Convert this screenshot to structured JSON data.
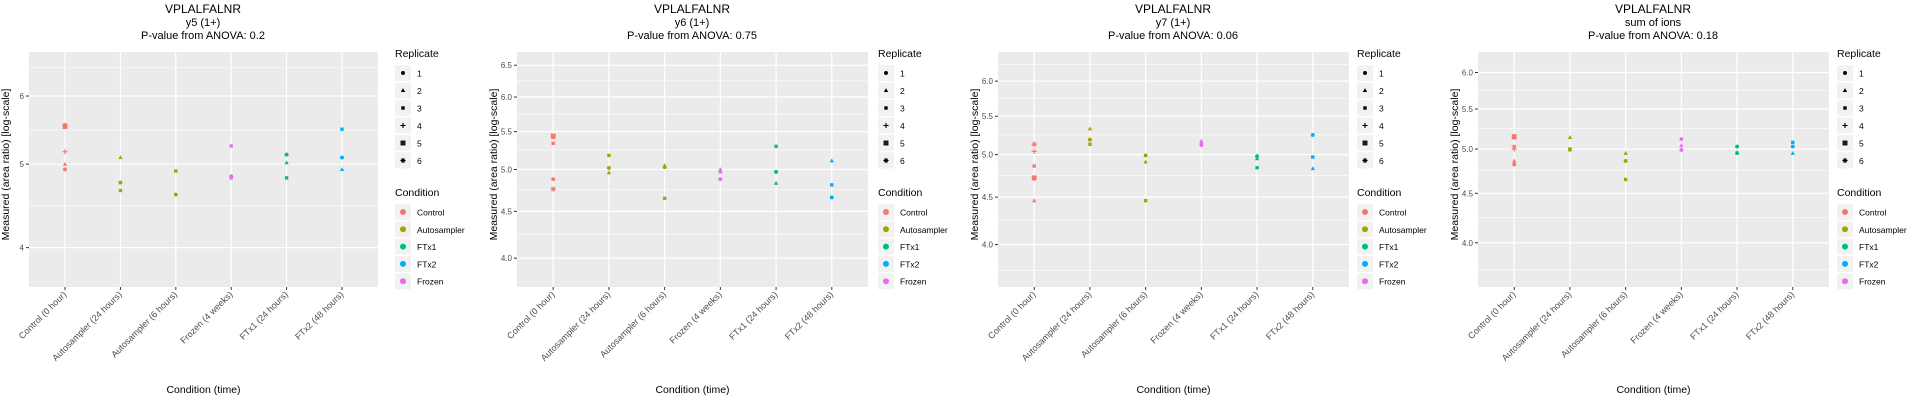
{
  "figure": {
    "legend_replicate_title": "Replicate",
    "legend_condition_title": "Condition"
  },
  "legend": {
    "replicates": [
      {
        "id": "1",
        "shape": "circle"
      },
      {
        "id": "2",
        "shape": "triangle"
      },
      {
        "id": "3",
        "shape": "square"
      },
      {
        "id": "4",
        "shape": "plus"
      },
      {
        "id": "5",
        "shape": "boxed-x"
      },
      {
        "id": "6",
        "shape": "asterisk"
      }
    ],
    "conditions": [
      {
        "label": "Control",
        "color": "#F8766D"
      },
      {
        "label": "Autosampler",
        "color": "#A3A500"
      },
      {
        "label": "FTx1",
        "color": "#00BF7D"
      },
      {
        "label": "FTx2",
        "color": "#00B0F6"
      },
      {
        "label": "Frozen",
        "color": "#E76BF3"
      }
    ]
  },
  "chart_data": [
    {
      "type": "scatter",
      "title": "VPLALFALNR",
      "subtitle": "y5 (1+)",
      "pvalue_text": "P-value from ANOVA: 0.2",
      "xlabel": "Condition (time)",
      "ylabel": "Measured (area ratio) [log-scale]",
      "yscale": "log",
      "ylim": [
        3.6,
        6.75
      ],
      "yticks": [
        4,
        5,
        6
      ],
      "ytick_labels": [
        "4",
        "5",
        "6"
      ],
      "yminor": [
        4.47,
        5.48,
        6.48
      ],
      "grid": true,
      "legend_position": "right",
      "categories": [
        "Control (0 hour)",
        "Autosampler (24 hours)",
        "Autosampler (6 hours)",
        "Frozen (4 weeks)",
        "FTx1 (24 hours)",
        "FTx2 (48 hours)"
      ],
      "points": [
        {
          "x": "Control (0 hour)",
          "condition": "Control",
          "replicate": "3",
          "y": 5.52
        },
        {
          "x": "Control (0 hour)",
          "condition": "Control",
          "replicate": "5",
          "y": 5.53
        },
        {
          "x": "Control (0 hour)",
          "condition": "Control",
          "replicate": "6",
          "y": 5.55
        },
        {
          "x": "Control (0 hour)",
          "condition": "Control",
          "replicate": "4",
          "y": 5.17
        },
        {
          "x": "Control (0 hour)",
          "condition": "Control",
          "replicate": "2",
          "y": 5.0
        },
        {
          "x": "Control (0 hour)",
          "condition": "Control",
          "replicate": "1",
          "y": 4.93
        },
        {
          "x": "Autosampler (24 hours)",
          "condition": "Autosampler",
          "replicate": "2",
          "y": 5.09
        },
        {
          "x": "Autosampler (24 hours)",
          "condition": "Autosampler",
          "replicate": "1",
          "y": 4.76
        },
        {
          "x": "Autosampler (24 hours)",
          "condition": "Autosampler",
          "replicate": "3",
          "y": 4.66
        },
        {
          "x": "Autosampler (6 hours)",
          "condition": "Autosampler",
          "replicate": "3",
          "y": 4.91
        },
        {
          "x": "Autosampler (6 hours)",
          "condition": "Autosampler",
          "replicate": "1",
          "y": 4.61
        },
        {
          "x": "Frozen (4 weeks)",
          "condition": "Frozen",
          "replicate": "3",
          "y": 5.25
        },
        {
          "x": "Frozen (4 weeks)",
          "condition": "Frozen",
          "replicate": "1",
          "y": 4.84
        },
        {
          "x": "Frozen (4 weeks)",
          "condition": "Frozen",
          "replicate": "3",
          "y": 4.82
        },
        {
          "x": "FTx1 (24 hours)",
          "condition": "FTx1",
          "replicate": "1",
          "y": 5.13
        },
        {
          "x": "FTx1 (24 hours)",
          "condition": "FTx1",
          "replicate": "2",
          "y": 5.02
        },
        {
          "x": "FTx1 (24 hours)",
          "condition": "FTx1",
          "replicate": "3",
          "y": 4.82
        },
        {
          "x": "FTx2 (48 hours)",
          "condition": "FTx2",
          "replicate": "3",
          "y": 5.49
        },
        {
          "x": "FTx2 (48 hours)",
          "condition": "FTx2",
          "replicate": "1",
          "y": 5.09
        },
        {
          "x": "FTx2 (48 hours)",
          "condition": "FTx2",
          "replicate": "2",
          "y": 4.93
        }
      ]
    },
    {
      "type": "scatter",
      "title": "VPLALFALNR",
      "subtitle": "y6 (1+)",
      "pvalue_text": "P-value from ANOVA: 0.75",
      "xlabel": "Condition (time)",
      "ylabel": "Measured (area ratio) [log-scale]",
      "yscale": "log",
      "ylim": [
        3.72,
        6.72
      ],
      "yticks": [
        4.0,
        4.5,
        5.0,
        5.5,
        6.0,
        6.5
      ],
      "ytick_labels": [
        "4.0",
        "4.5",
        "5.0",
        "5.5",
        "6.0",
        "6.5"
      ],
      "yminor": [
        4.25,
        4.75,
        5.25,
        5.75,
        6.25
      ],
      "grid": true,
      "legend_position": "left",
      "categories": [
        "Control (0 hour)",
        "Autosampler (24 hours)",
        "Autosampler (6 hours)",
        "Frozen (4 weeks)",
        "FTx1 (24 hours)",
        "FTx2 (48 hours)"
      ],
      "points": [
        {
          "x": "Control (0 hour)",
          "condition": "Control",
          "replicate": "5",
          "y": 5.44
        },
        {
          "x": "Control (0 hour)",
          "condition": "Control",
          "replicate": "3",
          "y": 5.42
        },
        {
          "x": "Control (0 hour)",
          "condition": "Control",
          "replicate": "3",
          "y": 5.34
        },
        {
          "x": "Control (0 hour)",
          "condition": "Control",
          "replicate": "1",
          "y": 4.88
        },
        {
          "x": "Control (0 hour)",
          "condition": "Control",
          "replicate": "6",
          "y": 4.76
        },
        {
          "x": "Autosampler (24 hours)",
          "condition": "Autosampler",
          "replicate": "3",
          "y": 5.18
        },
        {
          "x": "Autosampler (24 hours)",
          "condition": "Autosampler",
          "replicate": "1",
          "y": 5.02
        },
        {
          "x": "Autosampler (24 hours)",
          "condition": "Autosampler",
          "replicate": "2",
          "y": 4.96
        },
        {
          "x": "Autosampler (6 hours)",
          "condition": "Autosampler",
          "replicate": "2",
          "y": 5.05
        },
        {
          "x": "Autosampler (6 hours)",
          "condition": "Autosampler",
          "replicate": "1",
          "y": 5.03
        },
        {
          "x": "Autosampler (6 hours)",
          "condition": "Autosampler",
          "replicate": "3",
          "y": 4.65
        },
        {
          "x": "Frozen (4 weeks)",
          "condition": "Frozen",
          "replicate": "2",
          "y": 5.0
        },
        {
          "x": "Frozen (4 weeks)",
          "condition": "Frozen",
          "replicate": "3",
          "y": 4.97
        },
        {
          "x": "Frozen (4 weeks)",
          "condition": "Frozen",
          "replicate": "1",
          "y": 4.88
        },
        {
          "x": "FTx1 (24 hours)",
          "condition": "FTx1",
          "replicate": "3",
          "y": 5.3
        },
        {
          "x": "FTx1 (24 hours)",
          "condition": "FTx1",
          "replicate": "1",
          "y": 4.97
        },
        {
          "x": "FTx1 (24 hours)",
          "condition": "FTx1",
          "replicate": "2",
          "y": 4.83
        },
        {
          "x": "FTx2 (48 hours)",
          "condition": "FTx2",
          "replicate": "2",
          "y": 5.11
        },
        {
          "x": "FTx2 (48 hours)",
          "condition": "FTx2",
          "replicate": "3",
          "y": 4.81
        },
        {
          "x": "FTx2 (48 hours)",
          "condition": "FTx2",
          "replicate": "1",
          "y": 4.66
        }
      ]
    },
    {
      "type": "scatter",
      "title": "VPLALFALNR",
      "subtitle": "y7 (1+)",
      "pvalue_text": "P-value from ANOVA: 0.06",
      "xlabel": "Condition (time)",
      "ylabel": "Measured (area ratio) [log-scale]",
      "yscale": "log",
      "ylim": [
        3.6,
        6.45
      ],
      "yticks": [
        4.0,
        4.5,
        5.0,
        5.5,
        6.0
      ],
      "ytick_labels": [
        "4.0",
        "4.5",
        "5.0",
        "5.5",
        "6.0"
      ],
      "yminor": [
        3.75,
        4.25,
        4.75,
        5.25,
        5.75,
        6.25
      ],
      "grid": true,
      "legend_position": "right",
      "categories": [
        "Control (0 hour)",
        "Autosampler (24 hours)",
        "Autosampler (6 hours)",
        "Frozen (4 weeks)",
        "FTx1 (24 hours)",
        "FTx2 (48 hours)"
      ],
      "points": [
        {
          "x": "Control (0 hour)",
          "condition": "Control",
          "replicate": "6",
          "y": 5.13
        },
        {
          "x": "Control (0 hour)",
          "condition": "Control",
          "replicate": "4",
          "y": 5.04
        },
        {
          "x": "Control (0 hour)",
          "condition": "Control",
          "replicate": "3",
          "y": 4.86
        },
        {
          "x": "Control (0 hour)",
          "condition": "Control",
          "replicate": "5",
          "y": 4.72
        },
        {
          "x": "Control (0 hour)",
          "condition": "Control",
          "replicate": "1",
          "y": 4.71
        },
        {
          "x": "Control (0 hour)",
          "condition": "Control",
          "replicate": "2",
          "y": 4.46
        },
        {
          "x": "Autosampler (24 hours)",
          "condition": "Autosampler",
          "replicate": "2",
          "y": 5.33
        },
        {
          "x": "Autosampler (24 hours)",
          "condition": "Autosampler",
          "replicate": "1",
          "y": 5.19
        },
        {
          "x": "Autosampler (24 hours)",
          "condition": "Autosampler",
          "replicate": "3",
          "y": 5.13
        },
        {
          "x": "Autosampler (6 hours)",
          "condition": "Autosampler",
          "replicate": "1",
          "y": 4.99
        },
        {
          "x": "Autosampler (6 hours)",
          "condition": "Autosampler",
          "replicate": "2",
          "y": 4.91
        },
        {
          "x": "Autosampler (6 hours)",
          "condition": "Autosampler",
          "replicate": "3",
          "y": 4.46
        },
        {
          "x": "Frozen (4 weeks)",
          "condition": "Frozen",
          "replicate": "2",
          "y": 5.17
        },
        {
          "x": "Frozen (4 weeks)",
          "condition": "Frozen",
          "replicate": "3",
          "y": 5.14
        },
        {
          "x": "Frozen (4 weeks)",
          "condition": "Frozen",
          "replicate": "1",
          "y": 5.12
        },
        {
          "x": "FTx1 (24 hours)",
          "condition": "FTx1",
          "replicate": "1",
          "y": 4.98
        },
        {
          "x": "FTx1 (24 hours)",
          "condition": "FTx1",
          "replicate": "2",
          "y": 4.95
        },
        {
          "x": "FTx1 (24 hours)",
          "condition": "FTx1",
          "replicate": "3",
          "y": 4.84
        },
        {
          "x": "FTx2 (48 hours)",
          "condition": "FTx2",
          "replicate": "1",
          "y": 5.25
        },
        {
          "x": "FTx2 (48 hours)",
          "condition": "FTx2",
          "replicate": "3",
          "y": 4.97
        },
        {
          "x": "FTx2 (48 hours)",
          "condition": "FTx2",
          "replicate": "2",
          "y": 4.83
        }
      ]
    },
    {
      "type": "scatter",
      "title": "VPLALFALNR",
      "subtitle": "sum of ions",
      "pvalue_text": "P-value from ANOVA: 0.18",
      "xlabel": "Condition (time)",
      "ylabel": "Measured (area ratio) [log-scale]",
      "yscale": "log",
      "ylim": [
        3.6,
        6.3
      ],
      "yticks": [
        4.0,
        4.5,
        5.0,
        5.5,
        6.0
      ],
      "ytick_labels": [
        "4.0",
        "4.5",
        "5.0",
        "5.5",
        "6.0"
      ],
      "yminor": [
        3.75,
        4.25,
        4.75,
        5.25,
        5.75
      ],
      "grid": true,
      "legend_position": "right",
      "categories": [
        "Control (0 hour)",
        "Autosampler (24 hours)",
        "Autosampler (6 hours)",
        "Frozen (4 weeks)",
        "FTx1 (24 hours)",
        "FTx2 (48 hours)"
      ],
      "points": [
        {
          "x": "Control (0 hour)",
          "condition": "Control",
          "replicate": "5",
          "y": 5.15
        },
        {
          "x": "Control (0 hour)",
          "condition": "Control",
          "replicate": "6",
          "y": 5.14
        },
        {
          "x": "Control (0 hour)",
          "condition": "Control",
          "replicate": "3",
          "y": 5.03
        },
        {
          "x": "Control (0 hour)",
          "condition": "Control",
          "replicate": "4",
          "y": 5.0
        },
        {
          "x": "Control (0 hour)",
          "condition": "Control",
          "replicate": "2",
          "y": 4.86
        },
        {
          "x": "Control (0 hour)",
          "condition": "Control",
          "replicate": "1",
          "y": 4.82
        },
        {
          "x": "Autosampler (24 hours)",
          "condition": "Autosampler",
          "replicate": "2",
          "y": 5.14
        },
        {
          "x": "Autosampler (24 hours)",
          "condition": "Autosampler",
          "replicate": "3",
          "y": 4.99
        },
        {
          "x": "Autosampler (24 hours)",
          "condition": "Autosampler",
          "replicate": "1",
          "y": 5.0
        },
        {
          "x": "Autosampler (6 hours)",
          "condition": "Autosampler",
          "replicate": "2",
          "y": 4.95
        },
        {
          "x": "Autosampler (6 hours)",
          "condition": "Autosampler",
          "replicate": "1",
          "y": 4.86
        },
        {
          "x": "Autosampler (6 hours)",
          "condition": "Autosampler",
          "replicate": "3",
          "y": 4.65
        },
        {
          "x": "Frozen (4 weeks)",
          "condition": "Frozen",
          "replicate": "3",
          "y": 5.12
        },
        {
          "x": "Frozen (4 weeks)",
          "condition": "Frozen",
          "replicate": "2",
          "y": 5.04
        },
        {
          "x": "Frozen (4 weeks)",
          "condition": "Frozen",
          "replicate": "1",
          "y": 4.99
        },
        {
          "x": "FTx1 (24 hours)",
          "condition": "FTx1",
          "replicate": "1",
          "y": 5.03
        },
        {
          "x": "FTx1 (24 hours)",
          "condition": "FTx1",
          "replicate": "2",
          "y": 4.96
        },
        {
          "x": "FTx1 (24 hours)",
          "condition": "FTx1",
          "replicate": "3",
          "y": 4.95
        },
        {
          "x": "FTx2 (48 hours)",
          "condition": "FTx2",
          "replicate": "3",
          "y": 5.08
        },
        {
          "x": "FTx2 (48 hours)",
          "condition": "FTx2",
          "replicate": "1",
          "y": 5.03
        },
        {
          "x": "FTx2 (48 hours)",
          "condition": "FTx2",
          "replicate": "2",
          "y": 4.95
        }
      ]
    }
  ]
}
